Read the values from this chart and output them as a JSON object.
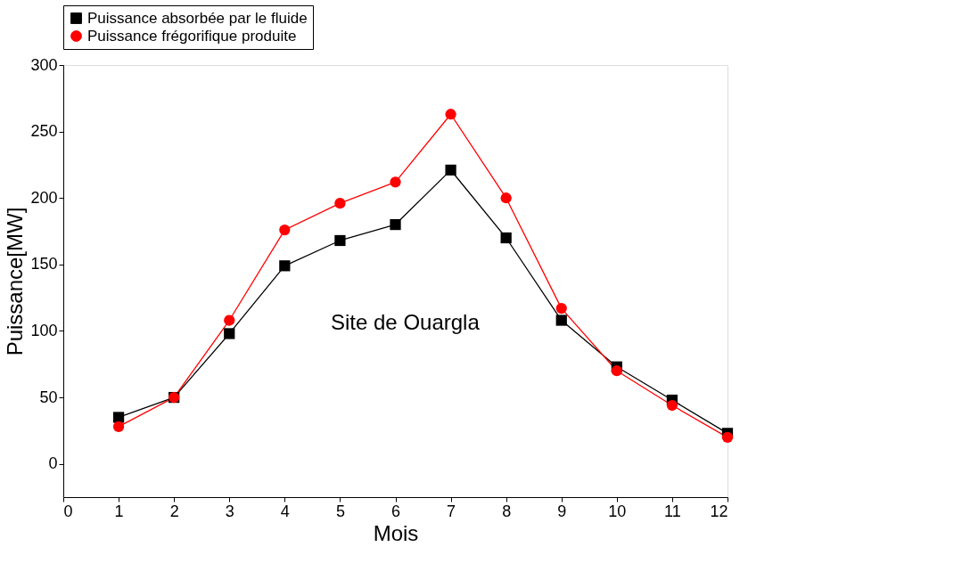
{
  "chart_data": {
    "type": "line",
    "xlabel": "Mois",
    "ylabel": "Puissance[MW]",
    "x": [
      1,
      2,
      3,
      4,
      5,
      6,
      7,
      8,
      9,
      10,
      11,
      12
    ],
    "series": [
      {
        "name": "Puissance absorbée par le fluide",
        "color": "#000000",
        "marker": "square",
        "values": [
          35,
          50,
          98,
          149,
          168,
          180,
          221,
          170,
          108,
          73,
          48,
          23
        ]
      },
      {
        "name": "Puissance frégorifique produite",
        "color": "#ff0000",
        "marker": "circle",
        "values": [
          28,
          50,
          108,
          176,
          196,
          212,
          263,
          200,
          117,
          70,
          44,
          20
        ]
      }
    ],
    "xlim": [
      0,
      12
    ],
    "xticks": [
      0,
      1,
      2,
      3,
      4,
      5,
      6,
      7,
      8,
      9,
      10,
      11,
      12
    ],
    "ylim": [
      -25,
      300
    ],
    "yticks": [
      0,
      50,
      100,
      150,
      200,
      250,
      300
    ],
    "annotations": [
      "Site de Ouargla"
    ],
    "grid": false,
    "legend": "top",
    "line_style": "solid"
  }
}
